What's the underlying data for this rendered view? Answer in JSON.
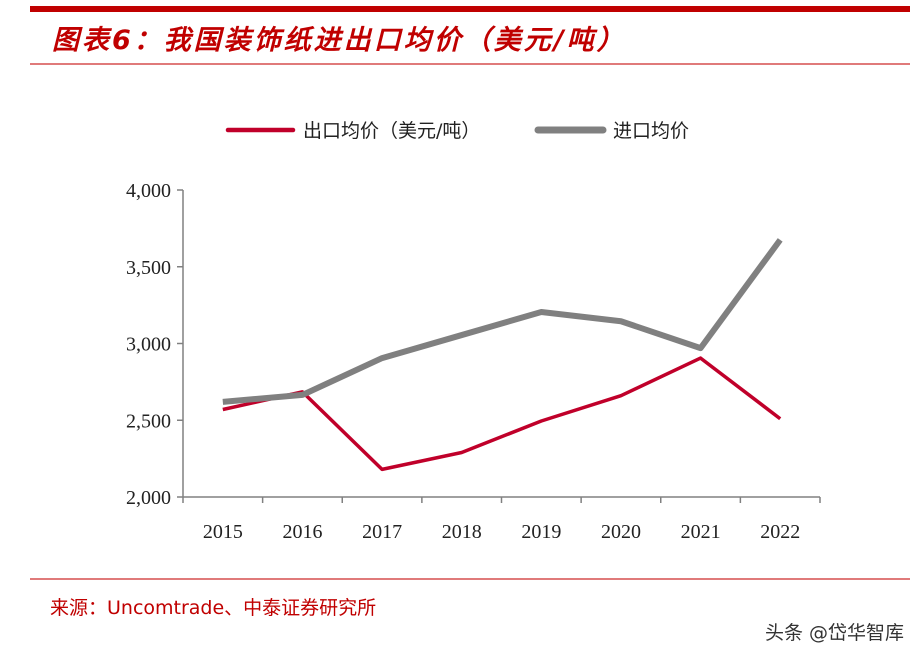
{
  "header": {
    "title": "图表6：我国装饰纸进出口均价（美元/吨）"
  },
  "footer": {
    "source": "来源：Uncomtrade、中泰证券研究所",
    "watermark": "头条 @岱华智库"
  },
  "chart_data": {
    "type": "line",
    "title": "图表6：我国装饰纸进出口均价（美元/吨）",
    "xlabel": "",
    "ylabel": "",
    "categories": [
      "2015",
      "2016",
      "2017",
      "2018",
      "2019",
      "2020",
      "2021",
      "2022"
    ],
    "ylim": [
      2000,
      4000
    ],
    "yticks": [
      2000,
      2500,
      3000,
      3500,
      4000
    ],
    "ytick_labels": [
      "2,000",
      "2,500",
      "3,000",
      "3,500",
      "4,000"
    ],
    "legend_position": "top",
    "grid": false,
    "series": [
      {
        "name": "出口均价（美元/吨）",
        "color": "#c0002a",
        "values": [
          2570,
          2685,
          2180,
          2290,
          2495,
          2660,
          2905,
          2510
        ]
      },
      {
        "name": "进口均价",
        "color": "#808080",
        "values": [
          2620,
          2665,
          2905,
          3055,
          3205,
          3145,
          2970,
          3675
        ]
      }
    ]
  }
}
